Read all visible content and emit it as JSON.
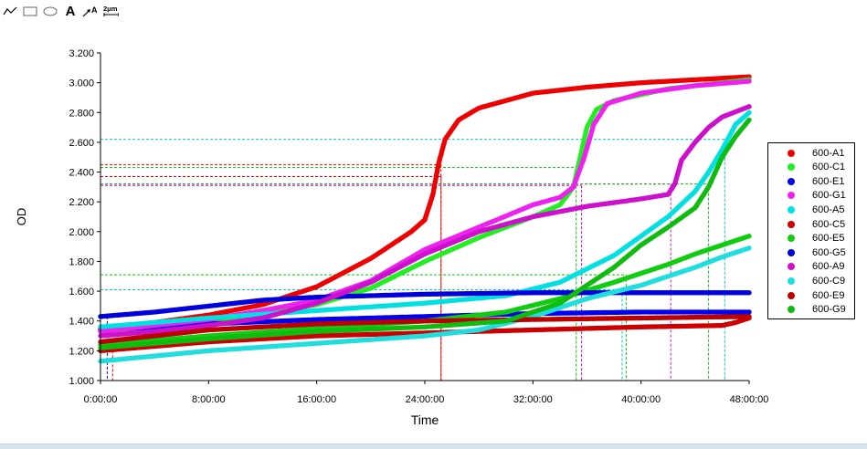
{
  "toolbar": {
    "tools": [
      {
        "name": "line-tool-icon"
      },
      {
        "name": "rectangle-tool-icon"
      },
      {
        "name": "ellipse-tool-icon"
      },
      {
        "name": "text-tool-icon",
        "glyph": "A"
      },
      {
        "name": "arrow-text-tool-icon",
        "glyph": "A"
      },
      {
        "name": "measure-tool-icon",
        "glyph": "2μm"
      }
    ]
  },
  "chart_data": {
    "type": "scatter",
    "xlabel": "Time",
    "ylabel": "OD",
    "x_unit": "hours",
    "xlim": [
      0,
      48
    ],
    "ylim": [
      1.0,
      3.2
    ],
    "x_ticks": [
      0,
      8,
      16,
      24,
      32,
      40,
      48
    ],
    "x_tick_labels": [
      "0:00:00",
      "8:00:00",
      "16:00:00",
      "24:00:00",
      "32:00:00",
      "40:00:00",
      "48:00:00"
    ],
    "y_ticks": [
      1.0,
      1.2,
      1.4,
      1.6,
      1.8,
      2.0,
      2.2,
      2.4,
      2.6,
      2.8,
      3.0,
      3.2
    ],
    "y_tick_labels": [
      "1.000",
      "1.200",
      "1.400",
      "1.600",
      "1.800",
      "2.000",
      "2.200",
      "2.400",
      "2.600",
      "2.800",
      "3.000",
      "3.200"
    ],
    "grid": false,
    "legend_position": "right",
    "series": [
      {
        "name": "600-A1",
        "color": "#ee0000",
        "points": [
          [
            0,
            1.35
          ],
          [
            4,
            1.39
          ],
          [
            8,
            1.44
          ],
          [
            12,
            1.51
          ],
          [
            16,
            1.63
          ],
          [
            20,
            1.82
          ],
          [
            23,
            2.0
          ],
          [
            24,
            2.08
          ],
          [
            24.6,
            2.25
          ],
          [
            25,
            2.45
          ],
          [
            25.5,
            2.62
          ],
          [
            26.5,
            2.75
          ],
          [
            28,
            2.83
          ],
          [
            32,
            2.93
          ],
          [
            36,
            2.97
          ],
          [
            40,
            3.0
          ],
          [
            44,
            3.02
          ],
          [
            48,
            3.04
          ]
        ]
      },
      {
        "name": "600-C1",
        "color": "#22ee22",
        "points": [
          [
            0,
            1.33
          ],
          [
            4,
            1.36
          ],
          [
            8,
            1.4
          ],
          [
            12,
            1.45
          ],
          [
            16,
            1.51
          ],
          [
            20,
            1.62
          ],
          [
            24,
            1.8
          ],
          [
            28,
            1.96
          ],
          [
            32,
            2.1
          ],
          [
            34,
            2.18
          ],
          [
            35,
            2.3
          ],
          [
            35.5,
            2.5
          ],
          [
            36,
            2.7
          ],
          [
            36.7,
            2.82
          ],
          [
            38,
            2.88
          ],
          [
            42,
            2.96
          ],
          [
            48,
            3.02
          ]
        ]
      },
      {
        "name": "600-E1",
        "color": "#0000ee",
        "points": [
          [
            0,
            1.34
          ],
          [
            8,
            1.38
          ],
          [
            16,
            1.41
          ],
          [
            24,
            1.43
          ],
          [
            32,
            1.45
          ],
          [
            40,
            1.46
          ],
          [
            48,
            1.46
          ]
        ]
      },
      {
        "name": "600-G1",
        "color": "#ee22ee",
        "points": [
          [
            0,
            1.33
          ],
          [
            4,
            1.37
          ],
          [
            8,
            1.41
          ],
          [
            12,
            1.47
          ],
          [
            16,
            1.54
          ],
          [
            20,
            1.67
          ],
          [
            24,
            1.88
          ],
          [
            28,
            2.03
          ],
          [
            32,
            2.18
          ],
          [
            34,
            2.23
          ],
          [
            35,
            2.3
          ],
          [
            35.8,
            2.5
          ],
          [
            36.5,
            2.72
          ],
          [
            37.5,
            2.86
          ],
          [
            40,
            2.93
          ],
          [
            44,
            2.98
          ],
          [
            48,
            3.01
          ]
        ]
      },
      {
        "name": "600-A5",
        "color": "#00e0e0",
        "points": [
          [
            0,
            1.36
          ],
          [
            8,
            1.42
          ],
          [
            16,
            1.47
          ],
          [
            24,
            1.52
          ],
          [
            30,
            1.57
          ],
          [
            34,
            1.66
          ],
          [
            38,
            1.84
          ],
          [
            40,
            1.97
          ],
          [
            42,
            2.1
          ],
          [
            44,
            2.27
          ],
          [
            45,
            2.4
          ],
          [
            46,
            2.55
          ],
          [
            47,
            2.72
          ],
          [
            48,
            2.8
          ]
        ]
      },
      {
        "name": "600-C5",
        "color": "#cc0000",
        "points": [
          [
            0,
            1.2
          ],
          [
            4,
            1.23
          ],
          [
            8,
            1.26
          ],
          [
            16,
            1.3
          ],
          [
            24,
            1.32
          ],
          [
            32,
            1.34
          ],
          [
            40,
            1.36
          ],
          [
            46,
            1.37
          ],
          [
            47,
            1.39
          ],
          [
            48,
            1.42
          ]
        ]
      },
      {
        "name": "600-E5",
        "color": "#11cc11",
        "points": [
          [
            0,
            1.24
          ],
          [
            8,
            1.3
          ],
          [
            16,
            1.35
          ],
          [
            24,
            1.4
          ],
          [
            30,
            1.46
          ],
          [
            34,
            1.55
          ],
          [
            38,
            1.66
          ],
          [
            40,
            1.72
          ],
          [
            42,
            1.78
          ],
          [
            44,
            1.85
          ],
          [
            46,
            1.91
          ],
          [
            48,
            1.97
          ]
        ]
      },
      {
        "name": "600-G5",
        "color": "#0000dd",
        "points": [
          [
            0,
            1.43
          ],
          [
            4,
            1.46
          ],
          [
            8,
            1.5
          ],
          [
            12,
            1.54
          ],
          [
            16,
            1.56
          ],
          [
            20,
            1.57
          ],
          [
            24,
            1.58
          ],
          [
            32,
            1.59
          ],
          [
            40,
            1.59
          ],
          [
            48,
            1.59
          ]
        ]
      },
      {
        "name": "600-A9",
        "color": "#cc11cc",
        "points": [
          [
            0,
            1.3
          ],
          [
            4,
            1.33
          ],
          [
            8,
            1.37
          ],
          [
            12,
            1.42
          ],
          [
            16,
            1.52
          ],
          [
            20,
            1.66
          ],
          [
            24,
            1.85
          ],
          [
            28,
            2.0
          ],
          [
            32,
            2.1
          ],
          [
            36,
            2.17
          ],
          [
            40,
            2.22
          ],
          [
            42,
            2.25
          ],
          [
            42.5,
            2.32
          ],
          [
            43,
            2.48
          ],
          [
            44,
            2.6
          ],
          [
            45,
            2.7
          ],
          [
            46,
            2.77
          ],
          [
            48,
            2.84
          ]
        ]
      },
      {
        "name": "600-C9",
        "color": "#22dddd",
        "points": [
          [
            0,
            1.13
          ],
          [
            8,
            1.2
          ],
          [
            16,
            1.25
          ],
          [
            24,
            1.3
          ],
          [
            28,
            1.34
          ],
          [
            32,
            1.43
          ],
          [
            36,
            1.55
          ],
          [
            40,
            1.64
          ],
          [
            44,
            1.76
          ],
          [
            46,
            1.83
          ],
          [
            48,
            1.89
          ]
        ]
      },
      {
        "name": "600-E9",
        "color": "#bb0000",
        "points": [
          [
            0,
            1.26
          ],
          [
            4,
            1.3
          ],
          [
            8,
            1.34
          ],
          [
            16,
            1.38
          ],
          [
            24,
            1.4
          ],
          [
            32,
            1.41
          ],
          [
            40,
            1.42
          ],
          [
            48,
            1.43
          ]
        ]
      },
      {
        "name": "600-G9",
        "color": "#11bb11",
        "points": [
          [
            0,
            1.22
          ],
          [
            8,
            1.28
          ],
          [
            16,
            1.33
          ],
          [
            24,
            1.36
          ],
          [
            30,
            1.4
          ],
          [
            34,
            1.52
          ],
          [
            38,
            1.76
          ],
          [
            40,
            1.91
          ],
          [
            42,
            2.03
          ],
          [
            44,
            2.16
          ],
          [
            45,
            2.3
          ],
          [
            46,
            2.5
          ],
          [
            47,
            2.64
          ],
          [
            48,
            2.75
          ]
        ]
      }
    ],
    "reference_lines": [
      {
        "color": "#dd0000",
        "x": 25.2,
        "y": 2.45
      },
      {
        "color": "#dd0000",
        "x": 25.2,
        "y": 2.37
      },
      {
        "color": "#00cccc",
        "x": 0,
        "y": 2.62
      },
      {
        "color": "#11bb11",
        "x": 35.2,
        "y": 2.43
      },
      {
        "color": "#cc11cc",
        "x": 35.6,
        "y": 2.31
      },
      {
        "color": "#cc11cc",
        "x": 42.2,
        "y": 2.32
      },
      {
        "color": "#11bb11",
        "x": 38.9,
        "y": 1.71
      },
      {
        "color": "#00cccc",
        "x": 38.6,
        "y": 1.61
      },
      {
        "color": "#11bb11",
        "x": 45.0,
        "y": 2.32
      },
      {
        "color": "#00cccc",
        "x": 46.2,
        "y": 2.62
      },
      {
        "color": "#dd0000",
        "x": 0.9,
        "y": 1.2
      },
      {
        "color": "#0000dd",
        "x": 0.5,
        "y": 1.43
      }
    ]
  }
}
